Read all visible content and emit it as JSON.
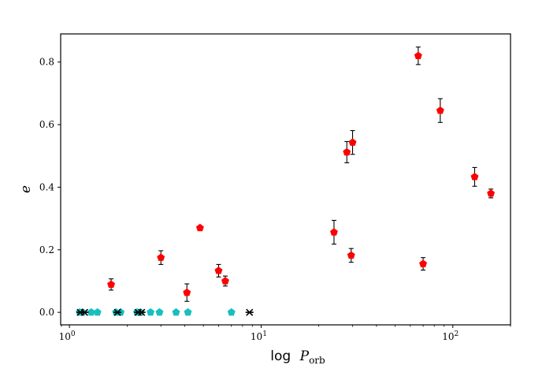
{
  "chart_data": {
    "type": "scatter",
    "xscale": "log",
    "xlim": [
      0.9,
      200
    ],
    "ylim": [
      -0.04,
      0.89
    ],
    "grid": false,
    "legend": "none",
    "xlabel_prefix": "log",
    "xlabel_symbol": "P",
    "xlabel_subscript": "orb",
    "ylabel": "e",
    "xticks": [
      {
        "value": 1,
        "base": "10",
        "exp": "0"
      },
      {
        "value": 10,
        "base": "10",
        "exp": "1"
      },
      {
        "value": 100,
        "base": "10",
        "exp": "2"
      }
    ],
    "yticks": [
      {
        "value": 0.0,
        "label": "0.0"
      },
      {
        "value": 0.2,
        "label": "0.2"
      },
      {
        "value": 0.4,
        "label": "0.4"
      },
      {
        "value": 0.6,
        "label": "0.6"
      },
      {
        "value": 0.8,
        "label": "0.8"
      }
    ],
    "series": [
      {
        "marker": "pentagon",
        "color": "#ff0000",
        "points": [
          {
            "x": 1.65,
            "y": 0.089,
            "err": 0.018
          },
          {
            "x": 3.0,
            "y": 0.175,
            "err": 0.022
          },
          {
            "x": 4.1,
            "y": 0.063,
            "err": 0.028
          },
          {
            "x": 4.8,
            "y": 0.27,
            "err": 0
          },
          {
            "x": 6.0,
            "y": 0.133,
            "err": 0.02
          },
          {
            "x": 6.5,
            "y": 0.1,
            "err": 0.016
          },
          {
            "x": 24.0,
            "y": 0.256,
            "err": 0.038
          },
          {
            "x": 28.0,
            "y": 0.512,
            "err": 0.034
          },
          {
            "x": 29.5,
            "y": 0.182,
            "err": 0.022
          },
          {
            "x": 30.0,
            "y": 0.543,
            "err": 0.038
          },
          {
            "x": 66.0,
            "y": 0.82,
            "err": 0.028
          },
          {
            "x": 70.0,
            "y": 0.155,
            "err": 0.02
          },
          {
            "x": 86.0,
            "y": 0.645,
            "err": 0.038
          },
          {
            "x": 130.0,
            "y": 0.433,
            "err": 0.03
          },
          {
            "x": 158.0,
            "y": 0.38,
            "err": 0.014
          }
        ]
      },
      {
        "marker": "pentagon",
        "color": "#17bfbf",
        "points": [
          {
            "x": 1.13,
            "y": 0
          },
          {
            "x": 1.17,
            "y": 0
          },
          {
            "x": 1.3,
            "y": 0
          },
          {
            "x": 1.4,
            "y": 0
          },
          {
            "x": 1.75,
            "y": 0
          },
          {
            "x": 1.85,
            "y": 0
          },
          {
            "x": 2.25,
            "y": 0
          },
          {
            "x": 2.35,
            "y": 0
          },
          {
            "x": 2.65,
            "y": 0
          },
          {
            "x": 2.95,
            "y": 0
          },
          {
            "x": 3.6,
            "y": 0
          },
          {
            "x": 4.15,
            "y": 0
          },
          {
            "x": 7.0,
            "y": 0
          }
        ]
      },
      {
        "marker": "x-cross",
        "color": "#000000",
        "points": [
          {
            "x": 1.14,
            "y": 0
          },
          {
            "x": 1.2,
            "y": 0
          },
          {
            "x": 1.78,
            "y": 0
          },
          {
            "x": 2.28,
            "y": 0
          },
          {
            "x": 2.38,
            "y": 0
          },
          {
            "x": 8.7,
            "y": 0
          }
        ]
      }
    ]
  }
}
